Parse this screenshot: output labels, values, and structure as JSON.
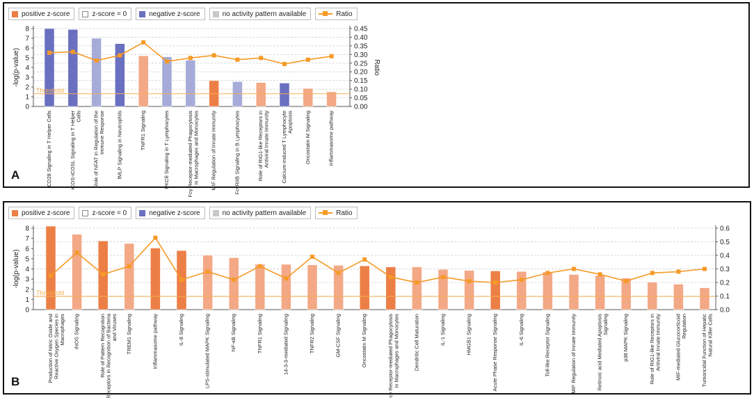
{
  "colors": {
    "positive": "#ec7f45",
    "positive_light": "#f3a886",
    "negative": "#6a6fc0",
    "negative_light": "#a6abd9",
    "na": "#c8c8c8",
    "ratio": "#f59a27",
    "threshold": "#f5b053"
  },
  "legend": [
    {
      "label": "positive z-score",
      "kind": "positive"
    },
    {
      "label": "z-score = 0",
      "kind": "zero"
    },
    {
      "label": "negative z-score",
      "kind": "negative"
    },
    {
      "label": "no activity pattern available",
      "kind": "na"
    },
    {
      "label": "Ratio",
      "kind": "ratio"
    }
  ],
  "chart_data": [
    {
      "panel": "A",
      "type": "bar",
      "ylabel": "-log(p-value)",
      "y2label": "Ratio",
      "ylim": [
        0,
        8
      ],
      "yticks": [
        "0",
        "1",
        "2",
        "3",
        "4",
        "5",
        "6",
        "7",
        "8"
      ],
      "y2lim": [
        0,
        0.45
      ],
      "y2ticks": [
        "0.00",
        "0.05",
        "0.10",
        "0.15",
        "0.20",
        "0.25",
        "0.30",
        "0.35",
        "0.40",
        "0.45"
      ],
      "threshold_label": "Threshold",
      "threshold": 1.3,
      "categories": [
        "CD28 Signaling in T Helper Cells",
        "iCOS-iCOSL Signaling in T Helper Cells",
        "Role of NFAT in Regulation of the Immune Response",
        "fMLP Signaling in Neutrophils",
        "TNFR1 Signaling",
        "PKCθ Signaling in T Lymphocytes",
        "Fcγ Receptor-mediated Phagocytosis in Macrophages and Monocytes",
        "MIF Regulation of Innate Immunity",
        "FcγRIIB Signaling in B Lymphocytes",
        "Role of RIG1-like Receptors in Antiviral Innate Immunity",
        "Calcium-induced T Lymphocyte Apoptosis",
        "Oncostatin M Signaling",
        "Inflammasome pathway"
      ],
      "values": [
        8.0,
        7.9,
        7.0,
        6.45,
        5.2,
        5.1,
        4.75,
        2.65,
        2.55,
        2.45,
        2.4,
        1.85,
        1.5
      ],
      "bar_kinds": [
        "negative",
        "negative",
        "negative_light",
        "negative",
        "positive_light",
        "negative_light",
        "negative_light",
        "positive",
        "negative_light",
        "positive_light",
        "negative",
        "positive_light",
        "positive_light"
      ],
      "ratio": [
        0.31,
        0.315,
        0.265,
        0.295,
        0.37,
        0.26,
        0.28,
        0.295,
        0.27,
        0.28,
        0.245,
        0.27,
        0.29
      ]
    },
    {
      "panel": "B",
      "type": "bar",
      "ylabel": "-log(p-value)",
      "y2label": "",
      "ylim": [
        0,
        8
      ],
      "yticks": [
        "0",
        "1",
        "2",
        "3",
        "4",
        "5",
        "6",
        "7",
        "8"
      ],
      "y2lim": [
        0,
        0.6
      ],
      "y2ticks": [
        "0.0",
        "0.1",
        "0.2",
        "0.3",
        "0.4",
        "0.5",
        "0.6"
      ],
      "threshold_label": "Threshold",
      "threshold": 1.3,
      "categories": [
        "Production of Nitric Oxide and Reactive Oxygen Species in Macrophages",
        "iNOS Signaling",
        "Role of Pattern Recognition Receptors in Recognition of Bacteria and Viruses",
        "TREM1 Signaling",
        "Inflammasome pathway",
        "IL-8 Signaling",
        "LPS-stimulated MAPK Signaling",
        "NF-κB Signaling",
        "TNFR1 Signaling",
        "14-3-3-mediated Signaling",
        "TNFR2 Signaling",
        "GM-CSF Signaling",
        "Oncostatin M Signaling",
        "Fcγ Receptor-mediated Phagocytosis in Macrophages and Monocytes",
        "Dendritic Cell Maturation",
        "IL-1 Signaling",
        "HMGB1 Signaling",
        "Acute Phase Response Signaling",
        "IL-6 Signaling",
        "Toll-like Receptor Signaling",
        "MIF Regulation of Innate Immunity",
        "Retinoic acid Mediated Apoptosis Signaling",
        "p38 MAPK Signaling",
        "Role of RIG1-like Receptors in Antiviral Innate Immunity",
        "MIF-mediated Glucocorticoid Regulation",
        "Tumoricidal Function of Hepatic Natural Killer Cells"
      ],
      "values": [
        8.2,
        7.4,
        6.75,
        6.5,
        6.05,
        5.8,
        5.35,
        5.1,
        4.45,
        4.45,
        4.4,
        4.35,
        4.3,
        4.2,
        4.2,
        3.95,
        3.85,
        3.8,
        3.75,
        3.7,
        3.45,
        3.35,
        3.1,
        2.7,
        2.5,
        2.15
      ],
      "bar_kinds": [
        "positive",
        "positive_light",
        "positive",
        "positive_light",
        "positive",
        "positive",
        "positive_light",
        "positive_light",
        "positive_light",
        "positive_light",
        "positive_light",
        "positive_light",
        "positive",
        "positive",
        "positive_light",
        "positive_light",
        "positive_light",
        "positive",
        "positive_light",
        "positive_light",
        "positive_light",
        "positive_light",
        "positive_light",
        "positive_light",
        "positive_light",
        "positive_light"
      ],
      "ratio": [
        0.25,
        0.42,
        0.26,
        0.32,
        0.53,
        0.22,
        0.28,
        0.22,
        0.32,
        0.23,
        0.39,
        0.27,
        0.37,
        0.24,
        0.2,
        0.24,
        0.21,
        0.2,
        0.22,
        0.27,
        0.3,
        0.26,
        0.21,
        0.27,
        0.28,
        0.3
      ]
    }
  ],
  "panel_labels": [
    "A",
    "B"
  ]
}
